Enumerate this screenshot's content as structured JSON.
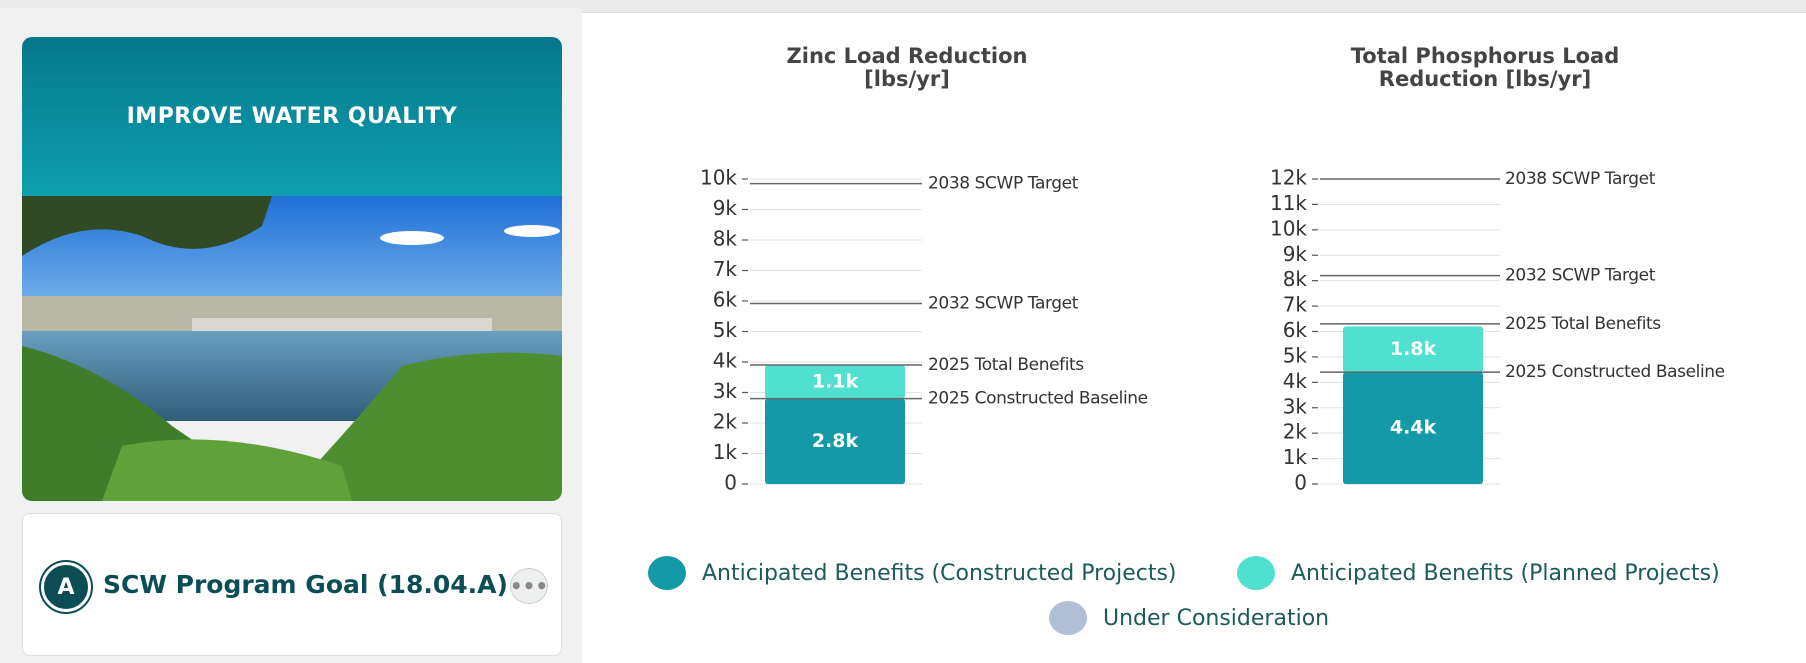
{
  "card": {
    "title": "IMPROVE WATER QUALITY",
    "badge": "A",
    "goal": "SCW Program Goal (18.04.A)",
    "menu": "•••"
  },
  "chart_data": [
    {
      "type": "bar",
      "stacked": true,
      "title": "Zinc Load Reduction [lbs/yr]",
      "ylim": [
        0,
        10000
      ],
      "yticks": [
        0,
        {
          "value": 1000,
          "label": "1k"
        },
        {
          "value": 2000,
          "label": "2k"
        },
        {
          "value": 3000,
          "label": "3k"
        },
        {
          "value": 4000,
          "label": "4k"
        },
        {
          "value": 5000,
          "label": "5k"
        },
        {
          "value": 6000,
          "label": "6k"
        },
        {
          "value": 7000,
          "label": "7k"
        },
        {
          "value": 8000,
          "label": "8k"
        },
        {
          "value": 9000,
          "label": "9k"
        },
        {
          "value": 10000,
          "label": "10k"
        }
      ],
      "grid": true,
      "series": [
        {
          "color": "#1399a8",
          "values": [
            2800
          ],
          "value_labels": [
            "2.8k"
          ]
        },
        {
          "color": "#4fe0d0",
          "values": [
            1100
          ],
          "value_labels": [
            "1.1k"
          ]
        }
      ],
      "reference_lines": [
        {
          "label": "2038 SCWP Target",
          "value": 9850
        },
        {
          "label": "2032 SCWP Target",
          "value": 5920
        },
        {
          "label": "2025 Total Benefits",
          "value": 3900
        },
        {
          "label": "2025 Constructed Baseline",
          "value": 2800
        }
      ]
    },
    {
      "type": "bar",
      "stacked": true,
      "title": "Total Phosphorus Load Reduction [lbs/yr]",
      "ylim": [
        0,
        12000
      ],
      "yticks": [
        0,
        {
          "value": 1000,
          "label": "1k"
        },
        {
          "value": 2000,
          "label": "2k"
        },
        {
          "value": 3000,
          "label": "3k"
        },
        {
          "value": 4000,
          "label": "4k"
        },
        {
          "value": 5000,
          "label": "5k"
        },
        {
          "value": 6000,
          "label": "6k"
        },
        {
          "value": 7000,
          "label": "7k"
        },
        {
          "value": 8000,
          "label": "8k"
        },
        {
          "value": 9000,
          "label": "9k"
        },
        {
          "value": 10000,
          "label": "10k"
        },
        {
          "value": 11000,
          "label": "11k"
        },
        {
          "value": 12000,
          "label": "12k"
        }
      ],
      "grid": true,
      "series": [
        {
          "color": "#1399a8",
          "values": [
            4400
          ],
          "value_labels": [
            "4.4k"
          ]
        },
        {
          "color": "#4fe0d0",
          "values": [
            1800
          ],
          "value_labels": [
            "1.8k"
          ]
        }
      ],
      "reference_lines": [
        {
          "label": "2038 SCWP Target",
          "value": 12000
        },
        {
          "label": "2032 SCWP Target",
          "value": 8200
        },
        {
          "label": "2025 Total Benefits",
          "value": 6300
        },
        {
          "label": "2025 Constructed Baseline",
          "value": 4400
        }
      ]
    }
  ],
  "legend": [
    {
      "name": "Anticipated Benefits (Constructed Projects)",
      "color": "#1399a8"
    },
    {
      "name": "Anticipated Benefits (Planned Projects)",
      "color": "#4fe0d0"
    },
    {
      "name": "Under Consideration",
      "color": "#b0bed6"
    }
  ]
}
